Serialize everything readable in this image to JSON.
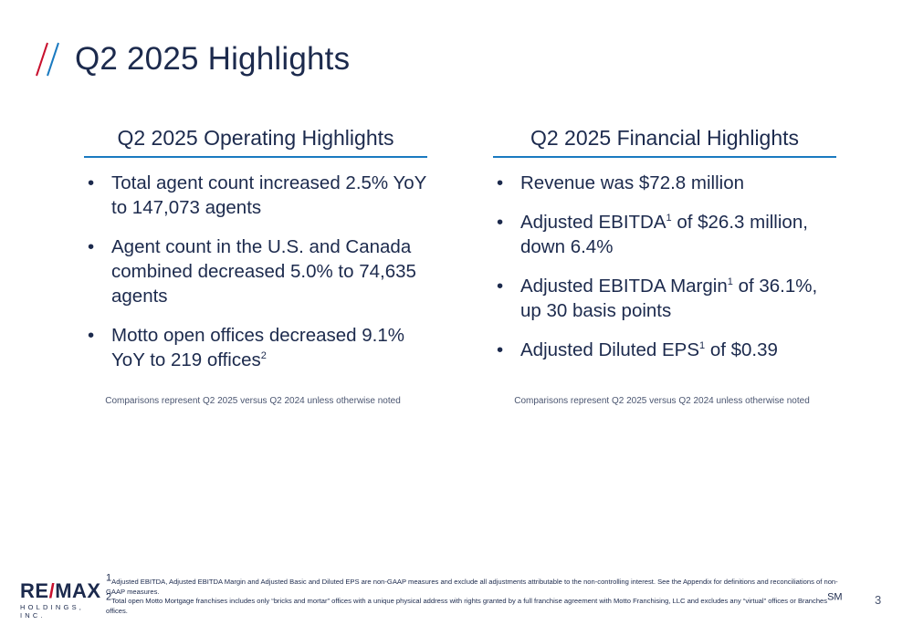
{
  "page": {
    "title": "Q2 2025 Highlights",
    "number": "3"
  },
  "operating": {
    "heading": "Q2 2025 Operating Highlights",
    "bullets": [
      "Total agent count increased 2.5% YoY to 147,073 agents",
      "Agent count in the U.S. and Canada combined decreased 5.0% to 74,635 agents",
      "Motto open offices decreased 9.1% YoY to 219 offices",
      "2"
    ],
    "comparison": "Comparisons represent Q2 2025 versus Q2 2024 unless otherwise noted"
  },
  "financial": {
    "heading": "Q2 2025 Financial Highlights",
    "b1": "Revenue was $72.8 million",
    "b2_pre": "Adjusted EBITDA",
    "b2_sup": "1",
    "b2_post": " of $26.3 million, down 6.4%",
    "b3_pre": "Adjusted EBITDA Margin",
    "b3_sup": "1",
    "b3_post": " of 36.1%, up 30 basis points",
    "b4_pre": "Adjusted Diluted EPS",
    "b4_sup": "1",
    "b4_post": " of $0.39",
    "comparison": "Comparisons represent Q2 2025 versus Q2 2024 unless otherwise noted"
  },
  "footnotes": {
    "f1_sup": "1",
    "f1": "Adjusted EBITDA, Adjusted EBITDA Margin and Adjusted Basic and Diluted EPS are non-GAAP measures and exclude all adjustments attributable to the non-controlling interest.  See the Appendix for definitions and reconciliations of non-GAAP measures.",
    "f2_sup": "2",
    "f2_pre": "Total open Motto Mortgage franchises includes only “bricks and mortar” offices with a unique physical address with rights granted by a full franchise agreement with Motto Franchising, LLC and excludes any “virtual” offices or Branches",
    "f2_sm": "SM",
    "f2_post": " offices."
  },
  "logo": {
    "part1": "RE",
    "slash": "/",
    "part2": "MAX",
    "sub": "HOLDINGS, INC."
  },
  "colors": {
    "navy": "#1c2a4d",
    "accent_blue": "#1a7ac0",
    "accent_red": "#c8102e"
  },
  "icons": [
    "slashes-icon",
    "bullet-icon"
  ]
}
